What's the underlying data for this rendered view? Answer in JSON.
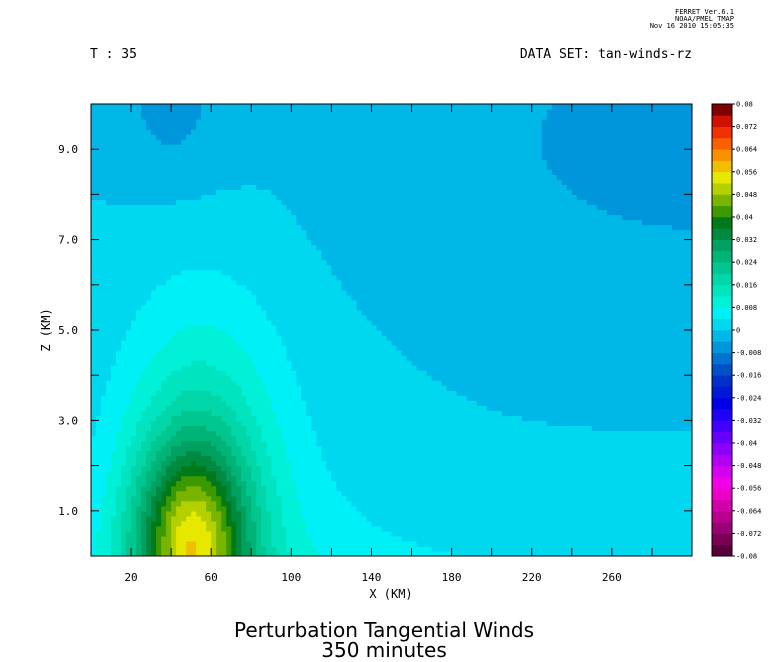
{
  "header": {
    "ferret_lines": [
      "FERRET Ver.6.1",
      "NOAA/PMEL TMAP",
      "Nov 16 2010 15:05:35"
    ],
    "time_label": "T : 35",
    "dataset_label": "DATA SET: tan-winds-rz"
  },
  "title_lines": [
    "Perturbation Tangential Winds",
    "350 minutes"
  ],
  "chart_data": {
    "type": "heatmap",
    "title": "Perturbation Tangential Winds",
    "subtitle": "350 minutes",
    "xlabel": "X (KM)",
    "ylabel": "Z (KM)",
    "xlim": [
      0,
      300
    ],
    "ylim": [
      0,
      10
    ],
    "x_ticks": [
      20,
      60,
      100,
      140,
      180,
      220,
      260
    ],
    "y_ticks": [
      1.0,
      3.0,
      5.0,
      7.0,
      9.0
    ],
    "y_tick_labels": [
      "1.0",
      "3.0",
      "5.0",
      "7.0",
      "9.0"
    ],
    "colorbar": {
      "min": -0.08,
      "max": 0.08,
      "step": 0.004,
      "labels": [
        "0.08",
        "0.072",
        "0.064",
        "0.056",
        "0.048",
        "0.04",
        "0.032",
        "0.024",
        "0.016",
        "0.008",
        "0",
        "-0.008",
        "-0.016",
        "-0.024",
        "-0.032",
        "-0.04",
        "-0.048",
        "-0.056",
        "-0.064",
        "-0.072",
        "-0.08"
      ]
    },
    "features": [
      {
        "kind": "maximum",
        "x": 50,
        "z": 0.2,
        "value": 0.04
      },
      {
        "kind": "minimum",
        "x": 40,
        "z": 9.8,
        "value": -0.004
      },
      {
        "kind": "minimum",
        "x": 300,
        "z": 7.0,
        "value": -0.004
      }
    ]
  }
}
